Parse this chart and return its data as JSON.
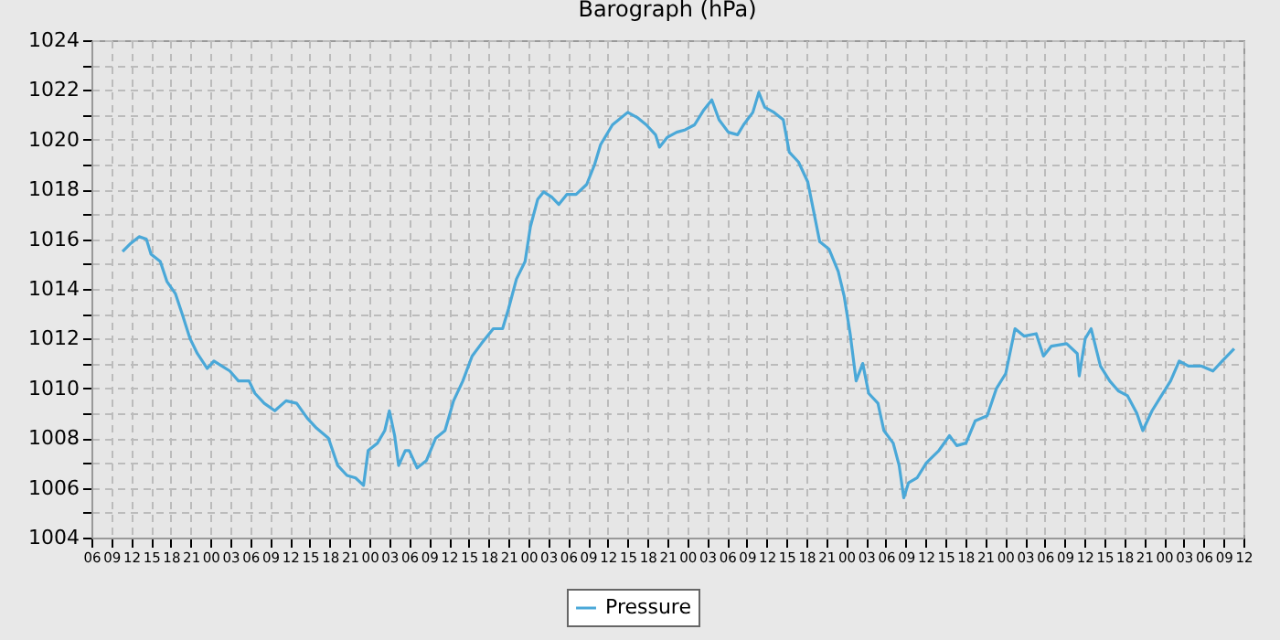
{
  "chart_data": {
    "type": "line",
    "title": "Barograph (hPa)",
    "legend": "bottom",
    "grid": true,
    "marker": "none",
    "line_style": "solid",
    "x": [
      10.7,
      11.8,
      13.2,
      14.3,
      15.0,
      16.4,
      17.4,
      18.7,
      19.7,
      20.9,
      22.0,
      23.5,
      24.5,
      25.7,
      26.9,
      28.2,
      29.8,
      30.7,
      32.1,
      33.7,
      35.4,
      37.0,
      38.6,
      40.0,
      41.8,
      43.2,
      44.6,
      45.9,
      47.1,
      47.8,
      49.2,
      50.3,
      51.0,
      51.8,
      52.4,
      53.4,
      54.0,
      55.2,
      56.6,
      58.0,
      59.4,
      60.7,
      62.1,
      63.5,
      64.9,
      66.7,
      68.1,
      69.0,
      70.2,
      71.5,
      72.3,
      73.4,
      74.3,
      75.5,
      76.6,
      77.8,
      79.2,
      80.8,
      82.0,
      82.9,
      84.7,
      87.0,
      88.4,
      89.8,
      91.2,
      91.8,
      93.0,
      94.4,
      95.7,
      97.1,
      98.5,
      99.7,
      100.8,
      102.2,
      103.6,
      104.5,
      105.9,
      106.8,
      107.7,
      109.1,
      110.5,
      111.4,
      112.8,
      114.2,
      115.1,
      116.0,
      117.4,
      118.8,
      119.7,
      120.6,
      121.5,
      122.5,
      123.4,
      124.8,
      125.7,
      127.1,
      128.0,
      128.7,
      129.4,
      130.7,
      132.1,
      134.0,
      135.6,
      136.7,
      138.1,
      139.5,
      141.3,
      142.7,
      144.1,
      145.5,
      146.9,
      148.7,
      149.8,
      151.0,
      153.3,
      154.9,
      155.2,
      156.1,
      157.0,
      158.4,
      159.8,
      161.1,
      162.5,
      163.9,
      164.8,
      166.2,
      167.6,
      169.0,
      170.3,
      171.7,
      173.6,
      175.4,
      176.8,
      178.6
    ],
    "series": [
      {
        "name": "Pressure",
        "color": "#4aa8d8",
        "values": [
          1015.5,
          1015.8,
          1016.1,
          1016.0,
          1015.4,
          1015.1,
          1014.3,
          1013.8,
          1013.0,
          1012.0,
          1011.4,
          1010.8,
          1011.1,
          1010.9,
          1010.7,
          1010.3,
          1010.3,
          1009.8,
          1009.4,
          1009.1,
          1009.5,
          1009.4,
          1008.8,
          1008.4,
          1008.0,
          1006.9,
          1006.5,
          1006.4,
          1006.1,
          1007.5,
          1007.8,
          1008.3,
          1009.1,
          1008.1,
          1006.9,
          1007.5,
          1007.5,
          1006.8,
          1007.1,
          1008.0,
          1008.3,
          1009.5,
          1010.3,
          1011.3,
          1011.8,
          1012.4,
          1012.4,
          1013.2,
          1014.4,
          1015.1,
          1016.5,
          1017.6,
          1017.9,
          1017.7,
          1017.4,
          1017.8,
          1017.8,
          1018.2,
          1019.0,
          1019.8,
          1020.6,
          1021.1,
          1020.9,
          1020.6,
          1020.2,
          1019.7,
          1020.1,
          1020.3,
          1020.4,
          1020.6,
          1021.2,
          1021.6,
          1020.8,
          1020.3,
          1020.2,
          1020.6,
          1021.1,
          1021.9,
          1021.3,
          1021.1,
          1020.8,
          1019.5,
          1019.1,
          1018.3,
          1017.1,
          1015.9,
          1015.6,
          1014.7,
          1013.7,
          1012.2,
          1010.3,
          1011.0,
          1009.8,
          1009.4,
          1008.3,
          1007.8,
          1006.9,
          1005.6,
          1006.2,
          1006.4,
          1007.0,
          1007.5,
          1008.1,
          1007.7,
          1007.8,
          1008.7,
          1008.9,
          1010.0,
          1010.6,
          1012.4,
          1012.1,
          1012.2,
          1011.3,
          1011.7,
          1011.8,
          1011.4,
          1010.5,
          1012.0,
          1012.4,
          1010.9,
          1010.3,
          1009.9,
          1009.7,
          1009.0,
          1008.3,
          1009.1,
          1009.7,
          1010.3,
          1011.1,
          1010.9,
          1010.9,
          1010.7,
          1011.1,
          1011.6
        ]
      }
    ],
    "xlim": [
      6,
      180
    ],
    "xticks": [
      {
        "value": 6,
        "label": "06"
      },
      {
        "value": 9,
        "label": "09"
      },
      12,
      15,
      18,
      21,
      {
        "value": 24,
        "label": "00"
      },
      {
        "value": 27,
        "label": "03"
      },
      {
        "value": 30,
        "label": "06"
      },
      {
        "value": 33,
        "label": "09"
      },
      {
        "value": 36,
        "label": "12"
      },
      {
        "value": 39,
        "label": "15"
      },
      {
        "value": 42,
        "label": "18"
      },
      {
        "value": 45,
        "label": "21"
      },
      {
        "value": 48,
        "label": "00"
      },
      {
        "value": 51,
        "label": "03"
      },
      {
        "value": 54,
        "label": "06"
      },
      {
        "value": 57,
        "label": "09"
      },
      {
        "value": 60,
        "label": "12"
      },
      {
        "value": 63,
        "label": "15"
      },
      {
        "value": 66,
        "label": "18"
      },
      {
        "value": 69,
        "label": "21"
      },
      {
        "value": 72,
        "label": "00"
      },
      {
        "value": 75,
        "label": "03"
      },
      {
        "value": 78,
        "label": "06"
      },
      {
        "value": 81,
        "label": "09"
      },
      {
        "value": 84,
        "label": "12"
      },
      {
        "value": 87,
        "label": "15"
      },
      {
        "value": 90,
        "label": "18"
      },
      {
        "value": 93,
        "label": "21"
      },
      {
        "value": 96,
        "label": "00"
      },
      {
        "value": 99,
        "label": "03"
      },
      {
        "value": 102,
        "label": "06"
      },
      {
        "value": 105,
        "label": "09"
      },
      {
        "value": 108,
        "label": "12"
      },
      {
        "value": 111,
        "label": "15"
      },
      {
        "value": 114,
        "label": "18"
      },
      {
        "value": 117,
        "label": "21"
      },
      {
        "value": 120,
        "label": "00"
      },
      {
        "value": 123,
        "label": "03"
      },
      {
        "value": 126,
        "label": "06"
      },
      {
        "value": 129,
        "label": "09"
      },
      {
        "value": 132,
        "label": "12"
      },
      {
        "value": 135,
        "label": "15"
      },
      {
        "value": 138,
        "label": "18"
      },
      {
        "value": 141,
        "label": "21"
      },
      {
        "value": 144,
        "label": "00"
      },
      {
        "value": 147,
        "label": "03"
      },
      {
        "value": 150,
        "label": "06"
      },
      {
        "value": 153,
        "label": "09"
      },
      {
        "value": 156,
        "label": "12"
      },
      {
        "value": 159,
        "label": "15"
      },
      {
        "value": 162,
        "label": "18"
      },
      {
        "value": 165,
        "label": "21"
      },
      {
        "value": 168,
        "label": "00"
      },
      {
        "value": 171,
        "label": "03"
      },
      {
        "value": 174,
        "label": "06"
      },
      {
        "value": 177,
        "label": "09"
      },
      {
        "value": 180,
        "label": "12"
      }
    ],
    "ylim": [
      1004,
      1024
    ],
    "yticks": [
      1004,
      {
        "value": 1005,
        "label": null
      },
      1006,
      {
        "value": 1007,
        "label": null
      },
      1008,
      {
        "value": 1009,
        "label": null
      },
      1010,
      {
        "value": 1011,
        "label": null
      },
      1012,
      {
        "value": 1013,
        "label": null
      },
      1014,
      {
        "value": 1015,
        "label": null
      },
      1016,
      {
        "value": 1017,
        "label": null
      },
      1018,
      {
        "value": 1019,
        "label": null
      },
      1020,
      {
        "value": 1021,
        "label": null
      },
      1022,
      {
        "value": 1023,
        "label": null
      },
      1024
    ]
  }
}
